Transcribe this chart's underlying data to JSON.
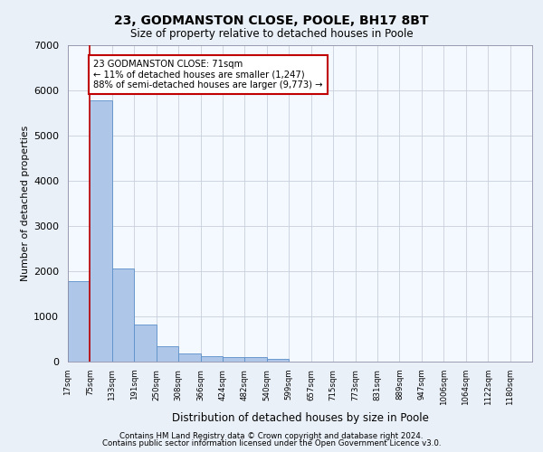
{
  "title1": "23, GODMANSTON CLOSE, POOLE, BH17 8BT",
  "title2": "Size of property relative to detached houses in Poole",
  "xlabel": "Distribution of detached houses by size in Poole",
  "ylabel": "Number of detached properties",
  "categories": [
    "17sqm",
    "75sqm",
    "133sqm",
    "191sqm",
    "250sqm",
    "308sqm",
    "366sqm",
    "424sqm",
    "482sqm",
    "540sqm",
    "599sqm",
    "657sqm",
    "715sqm",
    "773sqm",
    "831sqm",
    "889sqm",
    "947sqm",
    "1006sqm",
    "1064sqm",
    "1122sqm",
    "1180sqm"
  ],
  "values": [
    1780,
    5780,
    2060,
    820,
    340,
    190,
    115,
    105,
    95,
    70,
    0,
    0,
    0,
    0,
    0,
    0,
    0,
    0,
    0,
    0,
    0
  ],
  "bar_color": "#aec6e8",
  "bar_edge_color": "#5b8fc9",
  "highlight_color": "#c00000",
  "annotation_text": "23 GODMANSTON CLOSE: 71sqm\n← 11% of detached houses are smaller (1,247)\n88% of semi-detached houses are larger (9,773) →",
  "annotation_box_color": "#ffffff",
  "annotation_box_edge_color": "#c00000",
  "ylim": [
    0,
    7000
  ],
  "yticks": [
    0,
    1000,
    2000,
    3000,
    4000,
    5000,
    6000,
    7000
  ],
  "footer1": "Contains HM Land Registry data © Crown copyright and database right 2024.",
  "footer2": "Contains public sector information licensed under the Open Government Licence v3.0.",
  "bg_color": "#eaf0f8",
  "plot_bg_color": "#f4f8ff",
  "grid_color": "#c8d0dc"
}
